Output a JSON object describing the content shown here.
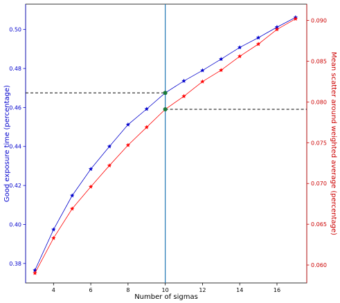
{
  "chart_data": {
    "type": "line",
    "xlabel": "Number of sigmas",
    "ylabel_left": "Good exposure time (percentage)",
    "ylabel_right": "Mean scatter around weighted average (percentage)",
    "xlim": [
      2.5,
      17.6
    ],
    "ylim_left": [
      0.37,
      0.513
    ],
    "ylim_right": [
      0.0578,
      0.092
    ],
    "x_ticks": [
      4,
      6,
      8,
      10,
      12,
      14,
      16
    ],
    "y_ticks_left": [
      0.38,
      0.4,
      0.42,
      0.44,
      0.46,
      0.48,
      0.5
    ],
    "y_ticks_right": [
      0.06,
      0.065,
      0.07,
      0.075,
      0.08,
      0.085,
      0.09
    ],
    "x_ticks_labels": [
      "4",
      "6",
      "8",
      "10",
      "12",
      "14",
      "16"
    ],
    "y_ticks_left_labels": [
      "0.38",
      "0.40",
      "0.42",
      "0.44",
      "0.46",
      "0.48",
      "0.50"
    ],
    "y_ticks_right_labels": [
      "0.060",
      "0.065",
      "0.070",
      "0.075",
      "0.080",
      "0.085",
      "0.090"
    ],
    "series": [
      {
        "axis": "left",
        "color": "#0000cc",
        "x": [
          3,
          4,
          5,
          6,
          7,
          8,
          9,
          10,
          11,
          12,
          13,
          14,
          15,
          16,
          17
        ],
        "values": [
          0.3765,
          0.3974,
          0.4148,
          0.4284,
          0.44,
          0.4512,
          0.4592,
          0.4675,
          0.4736,
          0.479,
          0.4848,
          0.4908,
          0.4958,
          0.5012,
          0.5062
        ]
      },
      {
        "axis": "right",
        "color": "#ff0000",
        "x": [
          3,
          4,
          5,
          6,
          7,
          8,
          9,
          10,
          11,
          12,
          13,
          14,
          15,
          16,
          17
        ],
        "values": [
          0.059,
          0.0633,
          0.0669,
          0.0696,
          0.0722,
          0.0747,
          0.0769,
          0.0791,
          0.0807,
          0.0825,
          0.0839,
          0.0856,
          0.0871,
          0.0889,
          0.0902
        ]
      }
    ],
    "vline_x": 10,
    "vline_color": "#1f77b4",
    "hline_left": {
      "x_from": 2.5,
      "x_to": 10,
      "y": 0.4675
    },
    "hline_right": {
      "x_from": 10,
      "x_to": 17.6,
      "y": 0.0791
    },
    "highlight_color": "#1a7a3a",
    "grid": false,
    "axis_colors": {
      "left": "#0000cc",
      "right": "#cc0000",
      "bottom": "#000000"
    }
  }
}
